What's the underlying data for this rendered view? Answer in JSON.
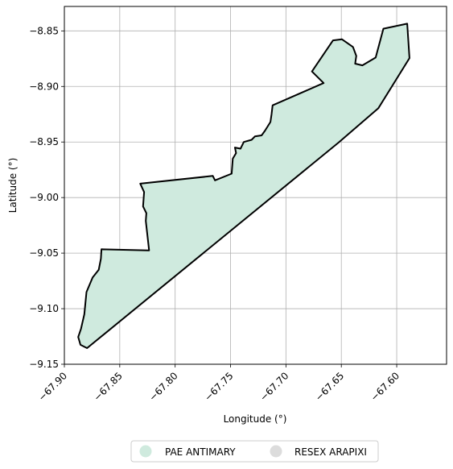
{
  "chart_data": {
    "type": "map",
    "title": "",
    "xlabel": "Longitude (°)",
    "ylabel": "Latitude (°)",
    "xlim": [
      -67.9,
      -67.555
    ],
    "ylim": [
      -9.15,
      -8.828
    ],
    "grid": true,
    "x_ticks": [
      {
        "value": -67.9,
        "label": "−67.90"
      },
      {
        "value": -67.85,
        "label": "−67.85"
      },
      {
        "value": -67.8,
        "label": "−67.80"
      },
      {
        "value": -67.75,
        "label": "−67.75"
      },
      {
        "value": -67.7,
        "label": "−67.70"
      },
      {
        "value": -67.65,
        "label": "−67.65"
      },
      {
        "value": -67.6,
        "label": "−67.60"
      }
    ],
    "y_ticks": [
      {
        "value": -8.85,
        "label": "−8.85"
      },
      {
        "value": -8.9,
        "label": "−8.90"
      },
      {
        "value": -8.95,
        "label": "−8.95"
      },
      {
        "value": -9.0,
        "label": "−9.00"
      },
      {
        "value": -9.05,
        "label": "−9.05"
      },
      {
        "value": -9.1,
        "label": "−9.10"
      },
      {
        "value": -9.15,
        "label": "−9.15"
      }
    ],
    "legend_position": "bottom-center",
    "legend": [
      {
        "label": "PAE ANTIMARY",
        "color": "#cfeade"
      },
      {
        "label": "RESEX ARAPIXI",
        "color": "#dcdcdc"
      }
    ],
    "series": [
      {
        "name": "RESEX ARAPIXI",
        "fill": "#dcdcdc",
        "polygon": [
          [
            -67.8315,
            -8.9875
          ],
          [
            -67.7835,
            -8.9825
          ],
          [
            -67.7855,
            -8.9855
          ],
          [
            -67.8315,
            -8.9895
          ]
        ]
      },
      {
        "name": "PAE ANTIMARY",
        "fill": "#cfeade",
        "outline": "#000000",
        "polygon": [
          [
            -67.8315,
            -8.9875
          ],
          [
            -67.766,
            -8.9805
          ],
          [
            -67.764,
            -8.9845
          ],
          [
            -67.749,
            -8.9785
          ],
          [
            -67.748,
            -8.965
          ],
          [
            -67.745,
            -8.96
          ],
          [
            -67.746,
            -8.955
          ],
          [
            -67.741,
            -8.956
          ],
          [
            -67.738,
            -8.95
          ],
          [
            -67.731,
            -8.948
          ],
          [
            -67.728,
            -8.945
          ],
          [
            -67.722,
            -8.944
          ],
          [
            -67.719,
            -8.94
          ],
          [
            -67.714,
            -8.932
          ],
          [
            -67.713,
            -8.925
          ],
          [
            -67.712,
            -8.917
          ],
          [
            -67.666,
            -8.897
          ],
          [
            -67.6765,
            -8.8865
          ],
          [
            -67.6575,
            -8.8585
          ],
          [
            -67.6495,
            -8.8575
          ],
          [
            -67.6395,
            -8.8645
          ],
          [
            -67.6365,
            -8.8725
          ],
          [
            -67.6375,
            -8.8795
          ],
          [
            -67.631,
            -8.881
          ],
          [
            -67.619,
            -8.874
          ],
          [
            -67.612,
            -8.848
          ],
          [
            -67.5905,
            -8.8435
          ],
          [
            -67.5885,
            -8.8745
          ],
          [
            -67.6165,
            -8.9195
          ],
          [
            -67.6525,
            -8.9505
          ],
          [
            -67.8795,
            -9.1355
          ],
          [
            -67.8855,
            -9.1325
          ],
          [
            -67.8875,
            -9.1255
          ],
          [
            -67.885,
            -9.118
          ],
          [
            -67.882,
            -9.105
          ],
          [
            -67.88,
            -9.085
          ],
          [
            -67.8745,
            -9.072
          ],
          [
            -67.869,
            -9.065
          ],
          [
            -67.867,
            -9.055
          ],
          [
            -67.8665,
            -9.0465
          ],
          [
            -67.8235,
            -9.0475
          ],
          [
            -67.8265,
            -9.021
          ],
          [
            -67.826,
            -9.014
          ],
          [
            -67.829,
            -9.008
          ],
          [
            -67.828,
            -8.995
          ],
          [
            -67.8315,
            -8.9875
          ]
        ]
      }
    ]
  }
}
